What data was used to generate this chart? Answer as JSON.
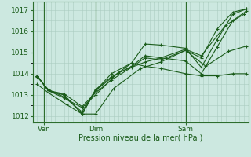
{
  "xlabel": "Pression niveau de la mer( hPa )",
  "bg_color": "#cce8e0",
  "grid_color": "#aaccc0",
  "line_color": "#1a5c1a",
  "marker_color": "#1a5c1a",
  "vline_color": "#2d6e2d",
  "spine_color": "#2d6e2d",
  "xlim": [
    0,
    96
  ],
  "ylim": [
    1011.7,
    1017.4
  ],
  "yticks": [
    1012,
    1013,
    1014,
    1015,
    1016,
    1017
  ],
  "xtick_positions": [
    5,
    28,
    68
  ],
  "xtick_labels": [
    "Ven",
    "Dim",
    "Sam"
  ],
  "vlines": [
    5,
    28,
    68
  ],
  "series": [
    {
      "x": [
        2,
        7,
        14,
        22,
        28,
        35,
        44,
        50,
        57,
        68,
        75,
        82,
        89,
        95
      ],
      "y": [
        1013.9,
        1013.2,
        1013.0,
        1012.1,
        1013.2,
        1013.8,
        1014.5,
        1015.4,
        1015.35,
        1015.2,
        1014.3,
        1015.6,
        1016.8,
        1017.05
      ]
    },
    {
      "x": [
        2,
        7,
        14,
        22,
        28,
        35,
        44,
        50,
        57,
        68,
        75,
        82,
        89,
        95
      ],
      "y": [
        1013.85,
        1013.25,
        1012.9,
        1012.2,
        1013.25,
        1013.85,
        1014.35,
        1014.85,
        1014.75,
        1014.6,
        1014.0,
        1015.25,
        1016.5,
        1016.95
      ]
    },
    {
      "x": [
        2,
        7,
        14,
        22,
        28,
        35,
        44,
        50,
        57,
        68,
        75,
        82,
        89,
        95
      ],
      "y": [
        1013.9,
        1013.2,
        1013.05,
        1012.45,
        1013.1,
        1013.7,
        1014.3,
        1014.75,
        1014.65,
        1015.1,
        1014.75,
        1016.1,
        1016.9,
        1017.05
      ]
    },
    {
      "x": [
        2,
        7,
        14,
        22,
        28,
        35,
        44,
        50,
        57,
        68,
        75,
        82,
        89,
        95
      ],
      "y": [
        1013.9,
        1013.2,
        1013.0,
        1012.1,
        1013.2,
        1014.0,
        1014.5,
        1014.35,
        1014.25,
        1014.0,
        1013.9,
        1013.9,
        1014.0,
        1014.0
      ]
    },
    {
      "x": [
        2,
        7,
        15,
        22,
        28,
        36,
        48,
        57,
        68,
        77,
        87,
        95
      ],
      "y": [
        1013.5,
        1013.1,
        1012.55,
        1012.1,
        1012.1,
        1013.3,
        1014.25,
        1014.55,
        1015.1,
        1014.35,
        1015.05,
        1015.3
      ]
    },
    {
      "x": [
        2,
        7,
        14,
        22,
        28,
        38,
        50,
        57,
        68,
        75,
        86,
        94
      ],
      "y": [
        1013.9,
        1013.2,
        1012.85,
        1012.4,
        1013.0,
        1014.05,
        1014.55,
        1014.75,
        1015.15,
        1014.85,
        1016.3,
        1016.8
      ]
    }
  ]
}
